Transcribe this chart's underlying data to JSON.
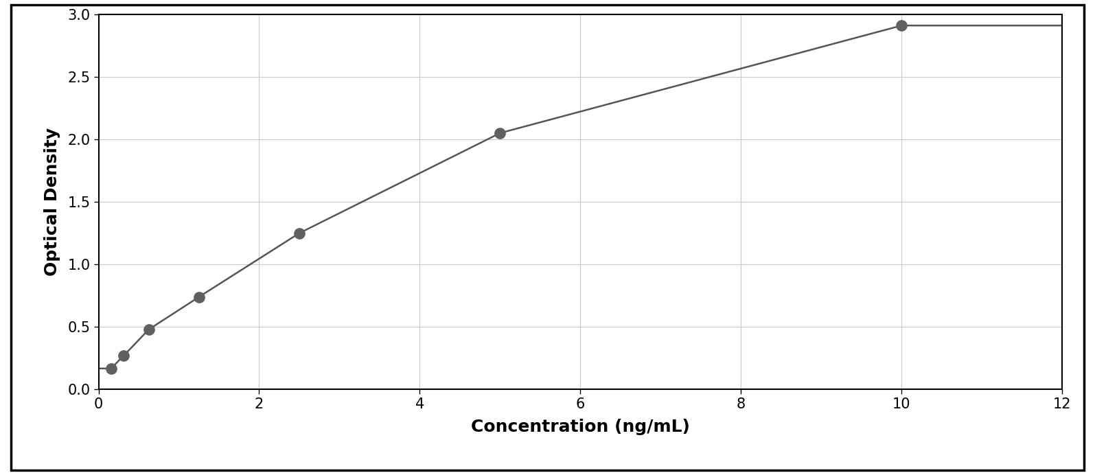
{
  "x_data": [
    0.156,
    0.313,
    0.625,
    1.25,
    2.5,
    5.0,
    10.0
  ],
  "y_data": [
    0.168,
    0.27,
    0.48,
    0.74,
    1.25,
    2.05,
    2.91
  ],
  "x_label": "Concentration (ng/mL)",
  "y_label": "Optical Density",
  "x_lim": [
    0,
    12
  ],
  "y_lim": [
    0,
    3.0
  ],
  "x_ticks": [
    0,
    2,
    4,
    6,
    8,
    10,
    12
  ],
  "y_ticks": [
    0,
    0.5,
    1.0,
    1.5,
    2.0,
    2.5,
    3.0
  ],
  "data_color": "#606060",
  "line_color": "#555555",
  "grid_color": "#c8c8c8",
  "background_color": "#ffffff",
  "border_color": "#000000",
  "marker_size": 11,
  "line_width": 1.8,
  "xlabel_fontsize": 18,
  "ylabel_fontsize": 18,
  "tick_fontsize": 15,
  "xlabel_fontweight": "bold",
  "ylabel_fontweight": "bold"
}
